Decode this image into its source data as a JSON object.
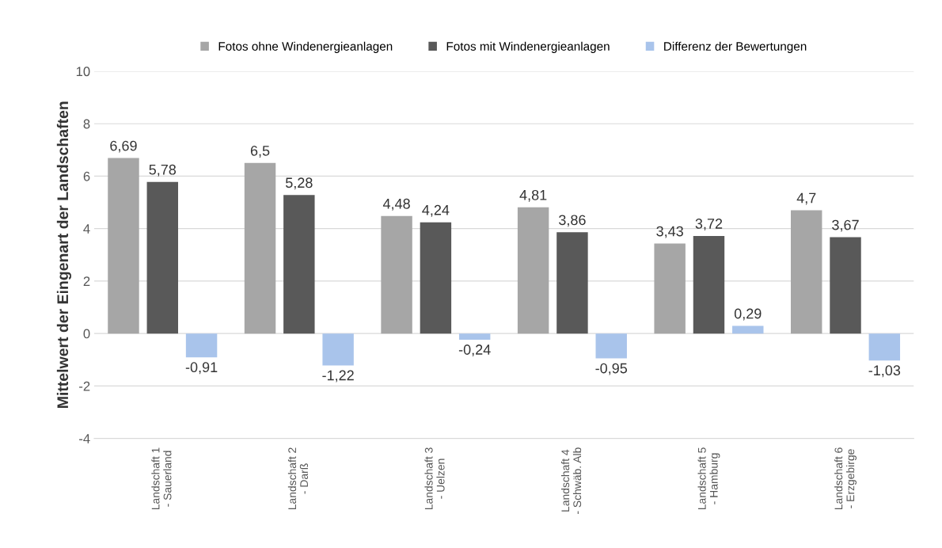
{
  "chart_data": {
    "type": "bar",
    "ylabel": "Mittelwert der Eingenart der Landschaften",
    "categories": [
      "Landschaft 1\n- Sauerland",
      "Landschaft 2\n- Darß",
      "Landschaft 3\n- Uelzen",
      "Landschaft 4\n- Schwäb. Alb",
      "Landschaft 5\n- Hamburg",
      "Landschaft 6\n- Erzgebirge"
    ],
    "series": [
      {
        "name": "Fotos ohne Windenergieanlagen",
        "color": "#a6a6a6",
        "values": [
          6.69,
          6.5,
          4.48,
          4.81,
          3.43,
          4.7
        ],
        "value_labels": [
          "6,69",
          "6,5",
          "4,48",
          "4,81",
          "3,43",
          "4,7"
        ]
      },
      {
        "name": "Fotos mit Windenergieanlagen",
        "color": "#595959",
        "values": [
          5.78,
          5.28,
          4.24,
          3.86,
          3.72,
          3.67
        ],
        "value_labels": [
          "5,78",
          "5,28",
          "4,24",
          "3,86",
          "3,72",
          "3,67"
        ]
      },
      {
        "name": "Differenz der Bewertungen",
        "color": "#a9c4eb",
        "values": [
          -0.91,
          -1.22,
          -0.24,
          -0.95,
          0.29,
          -1.03
        ],
        "value_labels": [
          "-0,91",
          "-1,22",
          "-0,24",
          "-0,95",
          "0,29",
          "-1,03"
        ]
      }
    ],
    "ylim": [
      -4,
      10
    ],
    "yticks": [
      -4,
      -2,
      0,
      2,
      4,
      6,
      8,
      10
    ],
    "grid": "y",
    "legend": "top"
  }
}
